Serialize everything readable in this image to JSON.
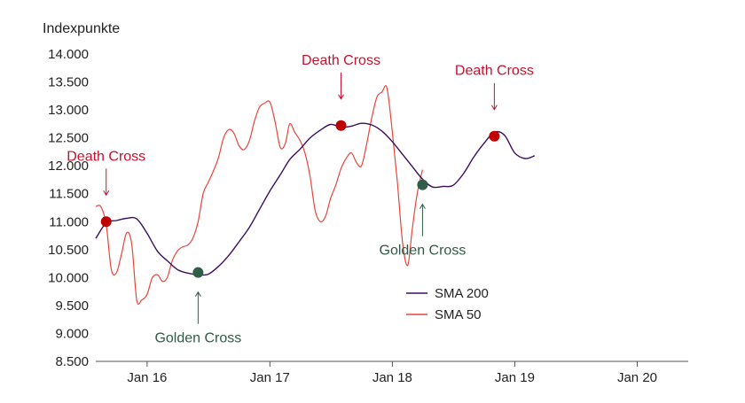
{
  "chart_data": {
    "type": "line",
    "title": "",
    "xlabel": "",
    "ylabel": "Indexpunkte",
    "ylim": [
      8500,
      14000
    ],
    "xlim": [
      "2015-08-01",
      "2020-06-01"
    ],
    "y_ticks": [
      {
        "value": 14000,
        "label": "14.000"
      },
      {
        "value": 13500,
        "label": "13.500"
      },
      {
        "value": 13000,
        "label": "13.000"
      },
      {
        "value": 12500,
        "label": "12.500"
      },
      {
        "value": 12000,
        "label": "12.000"
      },
      {
        "value": 11500,
        "label": "11.500"
      },
      {
        "value": 11000,
        "label": "11.000"
      },
      {
        "value": 10500,
        "label": "10.500"
      },
      {
        "value": 10000,
        "label": "10.000"
      },
      {
        "value": 9500,
        "label": "9.500"
      },
      {
        "value": 9000,
        "label": "9.000"
      },
      {
        "value": 8500,
        "label": "8.500"
      }
    ],
    "x_ticks": [
      {
        "date": "2016-01-01",
        "label": "Jan 16"
      },
      {
        "date": "2017-01-01",
        "label": "Jan 17"
      },
      {
        "date": "2018-01-01",
        "label": "Jan 18"
      },
      {
        "date": "2019-01-01",
        "label": "Jan 19"
      },
      {
        "date": "2020-01-01",
        "label": "Jan 20"
      }
    ],
    "grid": false,
    "legend_position": "center-bottom",
    "series": [
      {
        "name": "SMA 200",
        "color": "#3b0f5e",
        "points": [
          [
            "2015-08-01",
            10700
          ],
          [
            "2015-09-01",
            10980
          ],
          [
            "2015-10-01",
            11020
          ],
          [
            "2015-11-01",
            11060
          ],
          [
            "2015-12-01",
            11050
          ],
          [
            "2016-01-01",
            10790
          ],
          [
            "2016-02-01",
            10470
          ],
          [
            "2016-03-01",
            10300
          ],
          [
            "2016-04-01",
            10140
          ],
          [
            "2016-05-01",
            10080
          ],
          [
            "2016-06-01",
            10050
          ],
          [
            "2016-07-01",
            10060
          ],
          [
            "2016-08-01",
            10200
          ],
          [
            "2016-09-01",
            10400
          ],
          [
            "2016-10-01",
            10640
          ],
          [
            "2016-11-01",
            10900
          ],
          [
            "2016-12-01",
            11220
          ],
          [
            "2017-01-01",
            11550
          ],
          [
            "2017-02-01",
            11840
          ],
          [
            "2017-03-01",
            12110
          ],
          [
            "2017-04-01",
            12300
          ],
          [
            "2017-05-01",
            12500
          ],
          [
            "2017-06-01",
            12640
          ],
          [
            "2017-07-01",
            12740
          ],
          [
            "2017-08-01",
            12690
          ],
          [
            "2017-09-01",
            12710
          ],
          [
            "2017-10-01",
            12760
          ],
          [
            "2017-11-01",
            12730
          ],
          [
            "2017-12-01",
            12620
          ],
          [
            "2018-01-01",
            12430
          ],
          [
            "2018-02-01",
            12200
          ],
          [
            "2018-03-01",
            11990
          ],
          [
            "2018-04-01",
            11760
          ],
          [
            "2018-05-01",
            11620
          ],
          [
            "2018-06-01",
            11630
          ],
          [
            "2018-07-01",
            11650
          ],
          [
            "2018-08-01",
            11860
          ],
          [
            "2018-09-01",
            12160
          ],
          [
            "2018-10-01",
            12400
          ],
          [
            "2018-11-01",
            12600
          ],
          [
            "2018-12-01",
            12550
          ],
          [
            "2019-01-01",
            12230
          ],
          [
            "2019-02-01",
            12130
          ],
          [
            "2019-03-01",
            12180
          ]
        ]
      },
      {
        "name": "SMA 50",
        "color": "#e8453c",
        "points": [
          [
            "2015-08-01",
            11270
          ],
          [
            "2015-08-16",
            11270
          ],
          [
            "2015-09-01",
            10950
          ],
          [
            "2015-09-16",
            10150
          ],
          [
            "2015-10-01",
            10080
          ],
          [
            "2015-10-16",
            10400
          ],
          [
            "2015-11-01",
            10800
          ],
          [
            "2015-11-16",
            10600
          ],
          [
            "2015-12-01",
            9600
          ],
          [
            "2015-12-16",
            9600
          ],
          [
            "2016-01-01",
            9700
          ],
          [
            "2016-01-16",
            9990
          ],
          [
            "2016-02-01",
            10050
          ],
          [
            "2016-02-16",
            9930
          ],
          [
            "2016-03-01",
            10000
          ],
          [
            "2016-03-16",
            10300
          ],
          [
            "2016-04-01",
            10480
          ],
          [
            "2016-04-16",
            10550
          ],
          [
            "2016-05-01",
            10580
          ],
          [
            "2016-05-16",
            10700
          ],
          [
            "2016-06-01",
            11000
          ],
          [
            "2016-06-16",
            11500
          ],
          [
            "2016-07-01",
            11700
          ],
          [
            "2016-07-16",
            11900
          ],
          [
            "2016-08-01",
            12150
          ],
          [
            "2016-08-16",
            12500
          ],
          [
            "2016-09-01",
            12650
          ],
          [
            "2016-09-16",
            12580
          ],
          [
            "2016-10-01",
            12360
          ],
          [
            "2016-10-16",
            12290
          ],
          [
            "2016-11-01",
            12450
          ],
          [
            "2016-11-16",
            12800
          ],
          [
            "2016-12-01",
            13050
          ],
          [
            "2016-12-16",
            13120
          ],
          [
            "2017-01-01",
            13140
          ],
          [
            "2017-01-16",
            12800
          ],
          [
            "2017-02-01",
            12330
          ],
          [
            "2017-02-16",
            12400
          ],
          [
            "2017-03-01",
            12750
          ],
          [
            "2017-03-16",
            12600
          ],
          [
            "2017-04-01",
            12450
          ],
          [
            "2017-04-16",
            12220
          ],
          [
            "2017-05-01",
            11800
          ],
          [
            "2017-05-16",
            11200
          ],
          [
            "2017-06-01",
            11000
          ],
          [
            "2017-06-16",
            11100
          ],
          [
            "2017-07-01",
            11420
          ],
          [
            "2017-07-16",
            11650
          ],
          [
            "2017-08-01",
            11950
          ],
          [
            "2017-08-16",
            12130
          ],
          [
            "2017-09-01",
            12230
          ],
          [
            "2017-09-16",
            12060
          ],
          [
            "2017-10-01",
            12000
          ],
          [
            "2017-10-16",
            12380
          ],
          [
            "2017-11-01",
            12870
          ],
          [
            "2017-11-16",
            13230
          ],
          [
            "2017-12-01",
            13320
          ],
          [
            "2017-12-16",
            13390
          ],
          [
            "2018-01-01",
            12600
          ],
          [
            "2018-01-16",
            11700
          ],
          [
            "2018-02-01",
            10600
          ],
          [
            "2018-02-16",
            10220
          ],
          [
            "2018-03-01",
            10850
          ],
          [
            "2018-03-16",
            11500
          ],
          [
            "2018-04-01",
            11930
          ]
        ]
      }
    ],
    "annotations": [
      {
        "label": "Death Cross",
        "kind": "death",
        "date": "2015-09-01",
        "value": 11000
      },
      {
        "label": "Golden Cross",
        "kind": "golden",
        "date": "2016-06-01",
        "value": 10090
      },
      {
        "label": "Death Cross",
        "kind": "death",
        "date": "2017-08-01",
        "value": 12720
      },
      {
        "label": "Golden Cross",
        "kind": "golden",
        "date": "2018-04-01",
        "value": 11660
      },
      {
        "label": "Death Cross",
        "kind": "death",
        "date": "2018-11-01",
        "value": 12530
      }
    ],
    "annotation_colors": {
      "death": "#c8102e",
      "golden": "#2f5b46"
    },
    "marker_colors": {
      "death": "#c00000",
      "golden": "#2f5d45"
    }
  }
}
